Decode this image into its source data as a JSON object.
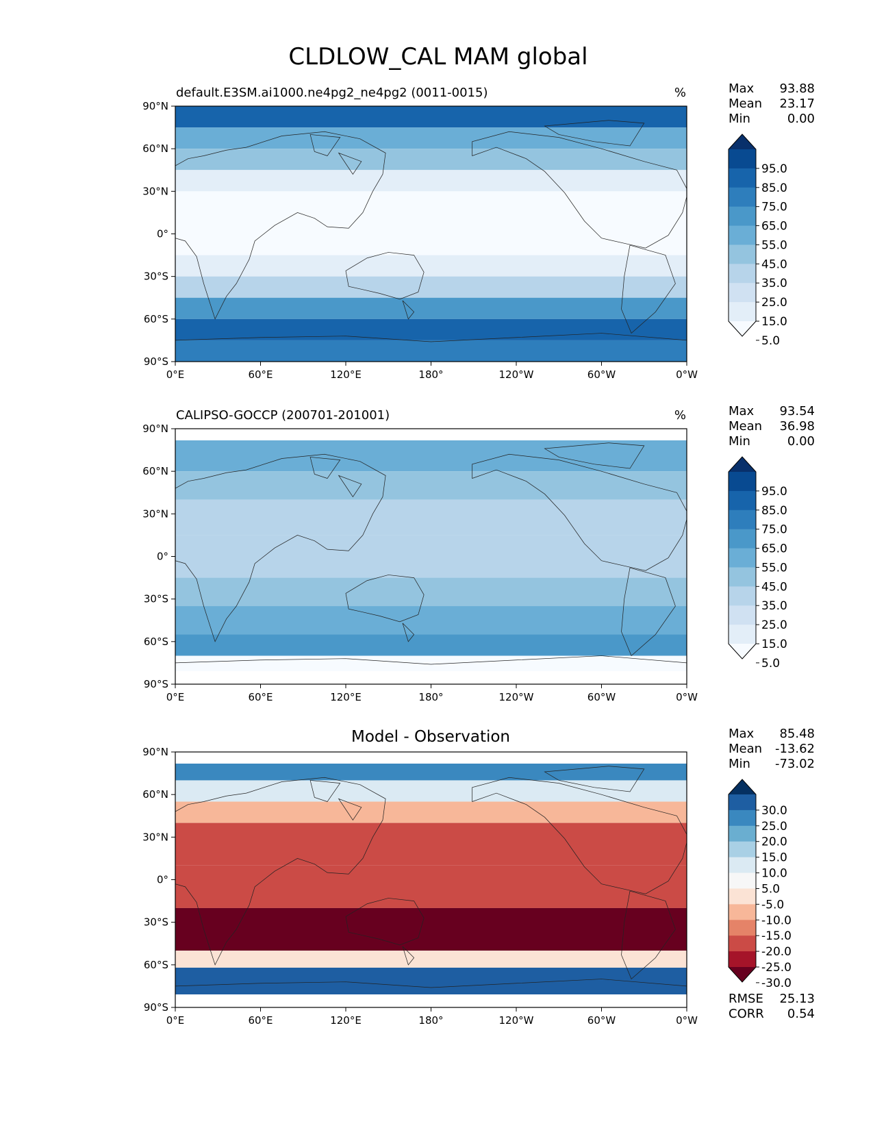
{
  "figure_title": "CLDLOW_CAL MAM global",
  "lat_ticks": [
    "90°N",
    "60°N",
    "30°N",
    "0°",
    "30°S",
    "60°S",
    "90°S"
  ],
  "lon_ticks": [
    "0°E",
    "60°E",
    "120°E",
    "180°",
    "120°W",
    "60°W",
    "0°W"
  ],
  "palettes": {
    "blues": [
      "#f7fbff",
      "#e3eef8",
      "#d0e1f2",
      "#b7d4ea",
      "#94c4df",
      "#6aaed6",
      "#4a98c9",
      "#2e7ebc",
      "#1764ab",
      "#084a91",
      "#08306b"
    ],
    "rdbu": [
      "#67001f",
      "#a51429",
      "#cb4b46",
      "#e58368",
      "#f7b799",
      "#fbe3d5",
      "#f7f7f7",
      "#dbeaf3",
      "#a9d0e5",
      "#6aaed0",
      "#3a88bf",
      "#1e5ea2",
      "#053061"
    ]
  },
  "chart_data": [
    {
      "type": "heatmap",
      "title": "default.E3SM.ai1000.ne4pg2_ne4pg2 (0011-0015)",
      "units": "%",
      "stats": {
        "Max": "93.88",
        "Mean": "23.17",
        "Min": "0.00"
      },
      "colorbar_levels": [
        "95.0",
        "85.0",
        "75.0",
        "65.0",
        "55.0",
        "45.0",
        "35.0",
        "25.0",
        "15.0",
        "5.0"
      ],
      "colormap": "Blues",
      "xlim": [
        0,
        360
      ],
      "ylim": [
        -90,
        90
      ],
      "lat_bands": [
        {
          "lat": [
            75,
            90
          ],
          "value": 80
        },
        {
          "lat": [
            60,
            75
          ],
          "value": 55
        },
        {
          "lat": [
            45,
            60
          ],
          "value": 40
        },
        {
          "lat": [
            30,
            45
          ],
          "value": 15
        },
        {
          "lat": [
            -15,
            30
          ],
          "value": 5
        },
        {
          "lat": [
            -30,
            -15
          ],
          "value": 15
        },
        {
          "lat": [
            -45,
            -30
          ],
          "value": 35
        },
        {
          "lat": [
            -60,
            -45
          ],
          "value": 60
        },
        {
          "lat": [
            -75,
            -60
          ],
          "value": 80
        },
        {
          "lat": [
            -90,
            -75
          ],
          "value": 70
        }
      ]
    },
    {
      "type": "heatmap",
      "title": "CALIPSO-GOCCP (200701-201001)",
      "units": "%",
      "stats": {
        "Max": "93.54",
        "Mean": "36.98",
        "Min": "0.00"
      },
      "colorbar_levels": [
        "95.0",
        "85.0",
        "75.0",
        "65.0",
        "55.0",
        "45.0",
        "35.0",
        "25.0",
        "15.0",
        "5.0"
      ],
      "colormap": "Blues",
      "xlim": [
        0,
        360
      ],
      "ylim": [
        -90,
        90
      ],
      "lat_bands": [
        {
          "lat": [
            60,
            82
          ],
          "value": 55
        },
        {
          "lat": [
            40,
            60
          ],
          "value": 40
        },
        {
          "lat": [
            15,
            40
          ],
          "value": 30
        },
        {
          "lat": [
            -15,
            15
          ],
          "value": 30
        },
        {
          "lat": [
            -35,
            -15
          ],
          "value": 40
        },
        {
          "lat": [
            -55,
            -35
          ],
          "value": 55
        },
        {
          "lat": [
            -70,
            -55
          ],
          "value": 65
        },
        {
          "lat": [
            -82,
            -70
          ],
          "value": 5
        }
      ]
    },
    {
      "type": "heatmap",
      "title": "Model - Observation",
      "units": "",
      "stats": {
        "Max": "85.48",
        "Mean": "-13.62",
        "Min": "-73.02"
      },
      "colorbar_levels": [
        "30.0",
        "25.0",
        "20.0",
        "15.0",
        "10.0",
        "5.0",
        "-5.0",
        "-10.0",
        "-15.0",
        "-20.0",
        "-25.0",
        "-30.0"
      ],
      "colormap": "RdBu",
      "xlim": [
        0,
        360
      ],
      "ylim": [
        -90,
        90
      ],
      "lat_bands": [
        {
          "lat": [
            70,
            82
          ],
          "value": 25
        },
        {
          "lat": [
            55,
            70
          ],
          "value": 10
        },
        {
          "lat": [
            40,
            55
          ],
          "value": -10
        },
        {
          "lat": [
            10,
            40
          ],
          "value": -20
        },
        {
          "lat": [
            -20,
            10
          ],
          "value": -20
        },
        {
          "lat": [
            -50,
            -20
          ],
          "value": -30
        },
        {
          "lat": [
            -62,
            -50
          ],
          "value": -5
        },
        {
          "lat": [
            -82,
            -62
          ],
          "value": 30
        }
      ],
      "metrics": {
        "RMSE": "25.13",
        "CORR": "0.54"
      }
    }
  ]
}
